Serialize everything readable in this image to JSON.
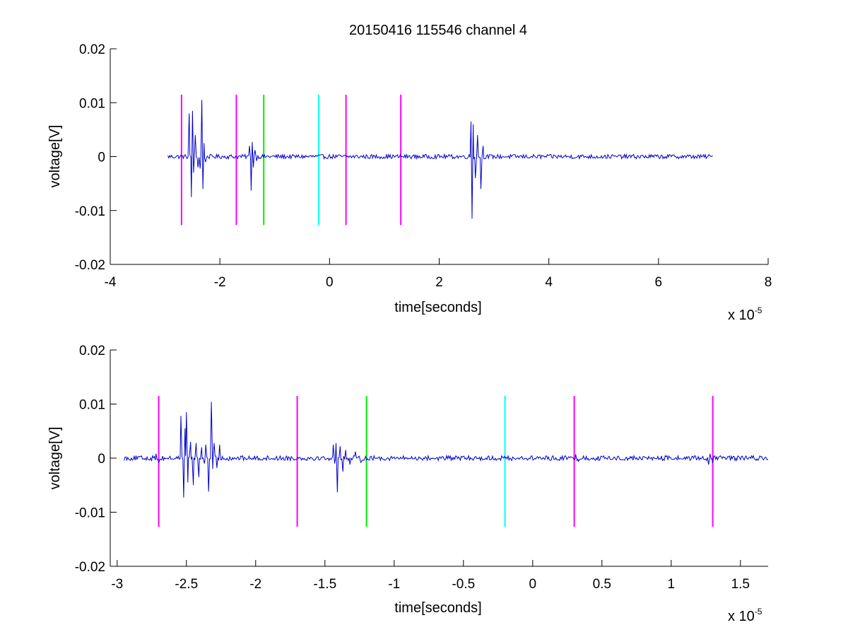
{
  "figure": {
    "title": "20150416 115546 channel 4"
  },
  "colors": {
    "background": "#ffffff",
    "axis": "#000000",
    "signal": "#0000cc",
    "magenta": "#ff00ff",
    "green": "#00ee00",
    "cyan": "#00ffff"
  },
  "chart_data": [
    {
      "type": "line",
      "title": "20150416 115546 channel 4",
      "xlabel": "time[seconds]",
      "ylabel": "voltage[V]",
      "x_exponent_label": "x 10",
      "x_exponent": "-5",
      "xlim": [
        -4,
        8
      ],
      "ylim": [
        -0.02,
        0.02
      ],
      "xticks": [
        -4,
        -2,
        0,
        2,
        4,
        6,
        8
      ],
      "xtick_labels": [
        "-4",
        "-2",
        "0",
        "2",
        "4",
        "6",
        "8"
      ],
      "yticks": [
        0.02,
        0.01,
        0,
        -0.01,
        -0.02
      ],
      "ytick_labels": [
        "0.02",
        "0.01",
        "0",
        "-0.01",
        "-0.02"
      ],
      "grid": false,
      "markers": [
        {
          "x": -2.7,
          "ymin": -0.0127,
          "ymax": 0.0115,
          "color": "magenta"
        },
        {
          "x": -1.7,
          "ymin": -0.0127,
          "ymax": 0.0115,
          "color": "magenta"
        },
        {
          "x": -1.2,
          "ymin": -0.0127,
          "ymax": 0.0115,
          "color": "green"
        },
        {
          "x": -0.2,
          "ymin": -0.0127,
          "ymax": 0.0115,
          "color": "cyan"
        },
        {
          "x": 0.3,
          "ymin": -0.0127,
          "ymax": 0.0115,
          "color": "magenta"
        },
        {
          "x": 1.3,
          "ymin": -0.0127,
          "ymax": 0.0115,
          "color": "magenta"
        }
      ],
      "signal": {
        "color": "signal",
        "x_start": -2.95,
        "x_end": 7.0,
        "noise_amplitude": 0.0004,
        "bursts": [
          {
            "x": [
              -2.56,
              -2.52,
              -2.5,
              -2.48,
              -2.45,
              -2.4
            ],
            "y": [
              0.008,
              -0.0075,
              0.0085,
              -0.003,
              0.004,
              -0.002
            ]
          },
          {
            "x": [
              -2.36,
              -2.33,
              -2.31,
              -2.29,
              -2.26
            ],
            "y": [
              -0.0022,
              0.0105,
              -0.006,
              0.0025,
              -0.001
            ]
          },
          {
            "x": [
              -1.46,
              -1.43,
              -1.41,
              -1.39,
              -1.36,
              -1.33
            ],
            "y": [
              0.002,
              -0.0063,
              0.0027,
              -0.002,
              0.0012,
              -0.0008
            ]
          },
          {
            "x": [
              2.58,
              2.6,
              2.62,
              2.66,
              2.7,
              2.76,
              2.8
            ],
            "y": [
              0.0065,
              -0.0115,
              0.006,
              -0.004,
              0.004,
              -0.006,
              0.002
            ]
          }
        ]
      }
    },
    {
      "type": "line",
      "xlabel": "time[seconds]",
      "ylabel": "voltage[V]",
      "x_exponent_label": "x 10",
      "x_exponent": "-5",
      "xlim": [
        -3.05,
        1.7
      ],
      "ylim": [
        -0.02,
        0.02
      ],
      "xticks": [
        -3,
        -2.5,
        -2,
        -1.5,
        -1,
        -0.5,
        0,
        0.5,
        1,
        1.5
      ],
      "xtick_labels": [
        "-3",
        "-2.5",
        "-2",
        "-1.5",
        "-1",
        "-0.5",
        "0",
        "0.5",
        "1",
        "1.5"
      ],
      "yticks": [
        0.02,
        0.01,
        0,
        -0.01,
        -0.02
      ],
      "ytick_labels": [
        "0.02",
        "0.01",
        "0",
        "-0.01",
        "-0.02"
      ],
      "grid": false,
      "markers": [
        {
          "x": -2.7,
          "ymin": -0.0127,
          "ymax": 0.0115,
          "color": "magenta"
        },
        {
          "x": -1.7,
          "ymin": -0.0127,
          "ymax": 0.0115,
          "color": "magenta"
        },
        {
          "x": -1.2,
          "ymin": -0.0127,
          "ymax": 0.0115,
          "color": "green"
        },
        {
          "x": -0.2,
          "ymin": -0.0127,
          "ymax": 0.0115,
          "color": "cyan"
        },
        {
          "x": 0.3,
          "ymin": -0.0127,
          "ymax": 0.0115,
          "color": "magenta"
        },
        {
          "x": 1.3,
          "ymin": -0.0127,
          "ymax": 0.0115,
          "color": "magenta"
        }
      ],
      "signal": {
        "color": "signal",
        "x_start": -2.95,
        "x_end": 1.7,
        "noise_amplitude": 0.00045,
        "bursts": [
          {
            "x": [
              -2.72,
              -2.7
            ],
            "y": [
              0.0008,
              -0.0008
            ]
          },
          {
            "x": [
              -2.54,
              -2.52,
              -2.51,
              -2.5,
              -2.49,
              -2.47,
              -2.45,
              -2.43,
              -2.41,
              -2.39,
              -2.37
            ],
            "y": [
              0.0078,
              -0.0073,
              0.0055,
              0.0085,
              -0.0045,
              0.003,
              -0.005,
              0.0028,
              -0.0035,
              0.002,
              -0.001
            ]
          },
          {
            "x": [
              -2.36,
              -2.34,
              -2.32,
              -2.31,
              -2.3,
              -2.28,
              -2.26
            ],
            "y": [
              0.0025,
              -0.0062,
              0.0104,
              -0.002,
              0.0028,
              -0.0018,
              0.0025
            ]
          },
          {
            "x": [
              -1.44,
              -1.43,
              -1.42,
              -1.41,
              -1.39,
              -1.37,
              -1.35,
              -1.32,
              -1.28,
              -1.24
            ],
            "y": [
              0.0025,
              -0.001,
              0.0028,
              -0.0063,
              0.0022,
              -0.0025,
              0.0015,
              -0.0012,
              0.0012,
              -0.0008
            ]
          },
          {
            "x": [
              0.31,
              0.33
            ],
            "y": [
              0.0007,
              -0.0006
            ]
          },
          {
            "x": [
              1.27,
              1.28,
              1.3
            ],
            "y": [
              -0.0012,
              0.0008,
              -0.0009
            ]
          }
        ]
      }
    }
  ]
}
